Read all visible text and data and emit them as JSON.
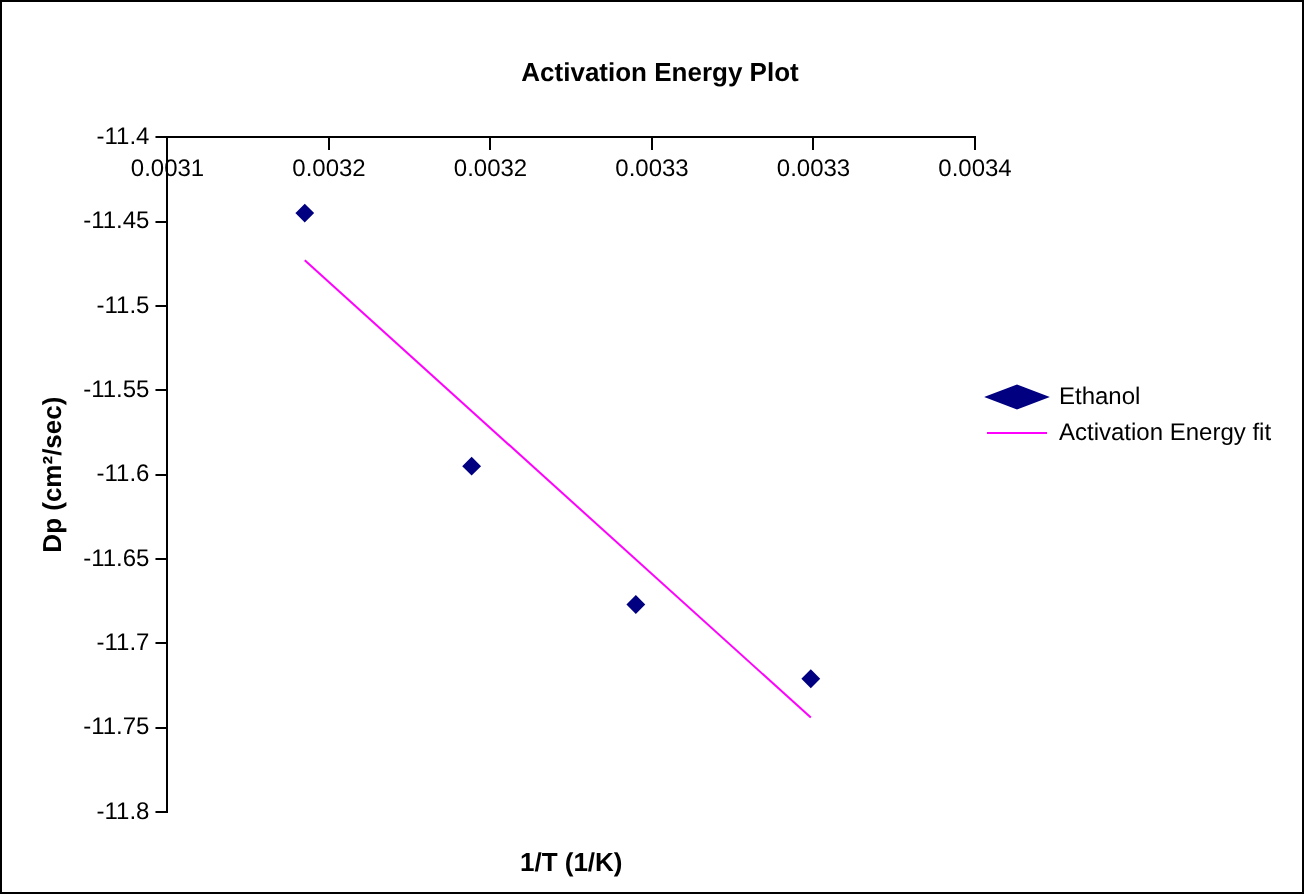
{
  "chart_data": {
    "type": "scatter",
    "title": "Activation Energy Plot",
    "xlabel": "1/T (1/K)",
    "ylabel": "Dp (cm²/sec)",
    "series": [
      {
        "name": "Ethanol",
        "type": "scatter",
        "color": "#000080",
        "marker": "diamond",
        "x": [
          0.003151,
          0.003213,
          0.003274,
          0.003339
        ],
        "values": [
          -11.445,
          -11.595,
          -11.677,
          -11.721
        ]
      },
      {
        "name": "Activation Energy fit",
        "type": "line",
        "color": "#ff00ff",
        "marker": "none",
        "line_style": "solid",
        "x": [
          0.003151,
          0.003339
        ],
        "values": [
          -11.473,
          -11.744
        ]
      }
    ],
    "xlim": [
      0.0031,
      0.0034
    ],
    "xticks": [
      0.0031,
      {
        "value": 0.00316,
        "label": "0.0032"
      },
      {
        "value": 0.00322,
        "label": "0.0032"
      },
      {
        "value": 0.00328,
        "label": "0.0033"
      },
      {
        "value": 0.00334,
        "label": "0.0033"
      },
      0.0034
    ],
    "ylim": [
      -11.8,
      -11.4
    ],
    "yticks": [
      -11.8,
      -11.75,
      -11.7,
      -11.65,
      -11.6,
      -11.55,
      -11.5,
      -11.45,
      -11.4
    ],
    "grid": false,
    "legend": "right"
  }
}
